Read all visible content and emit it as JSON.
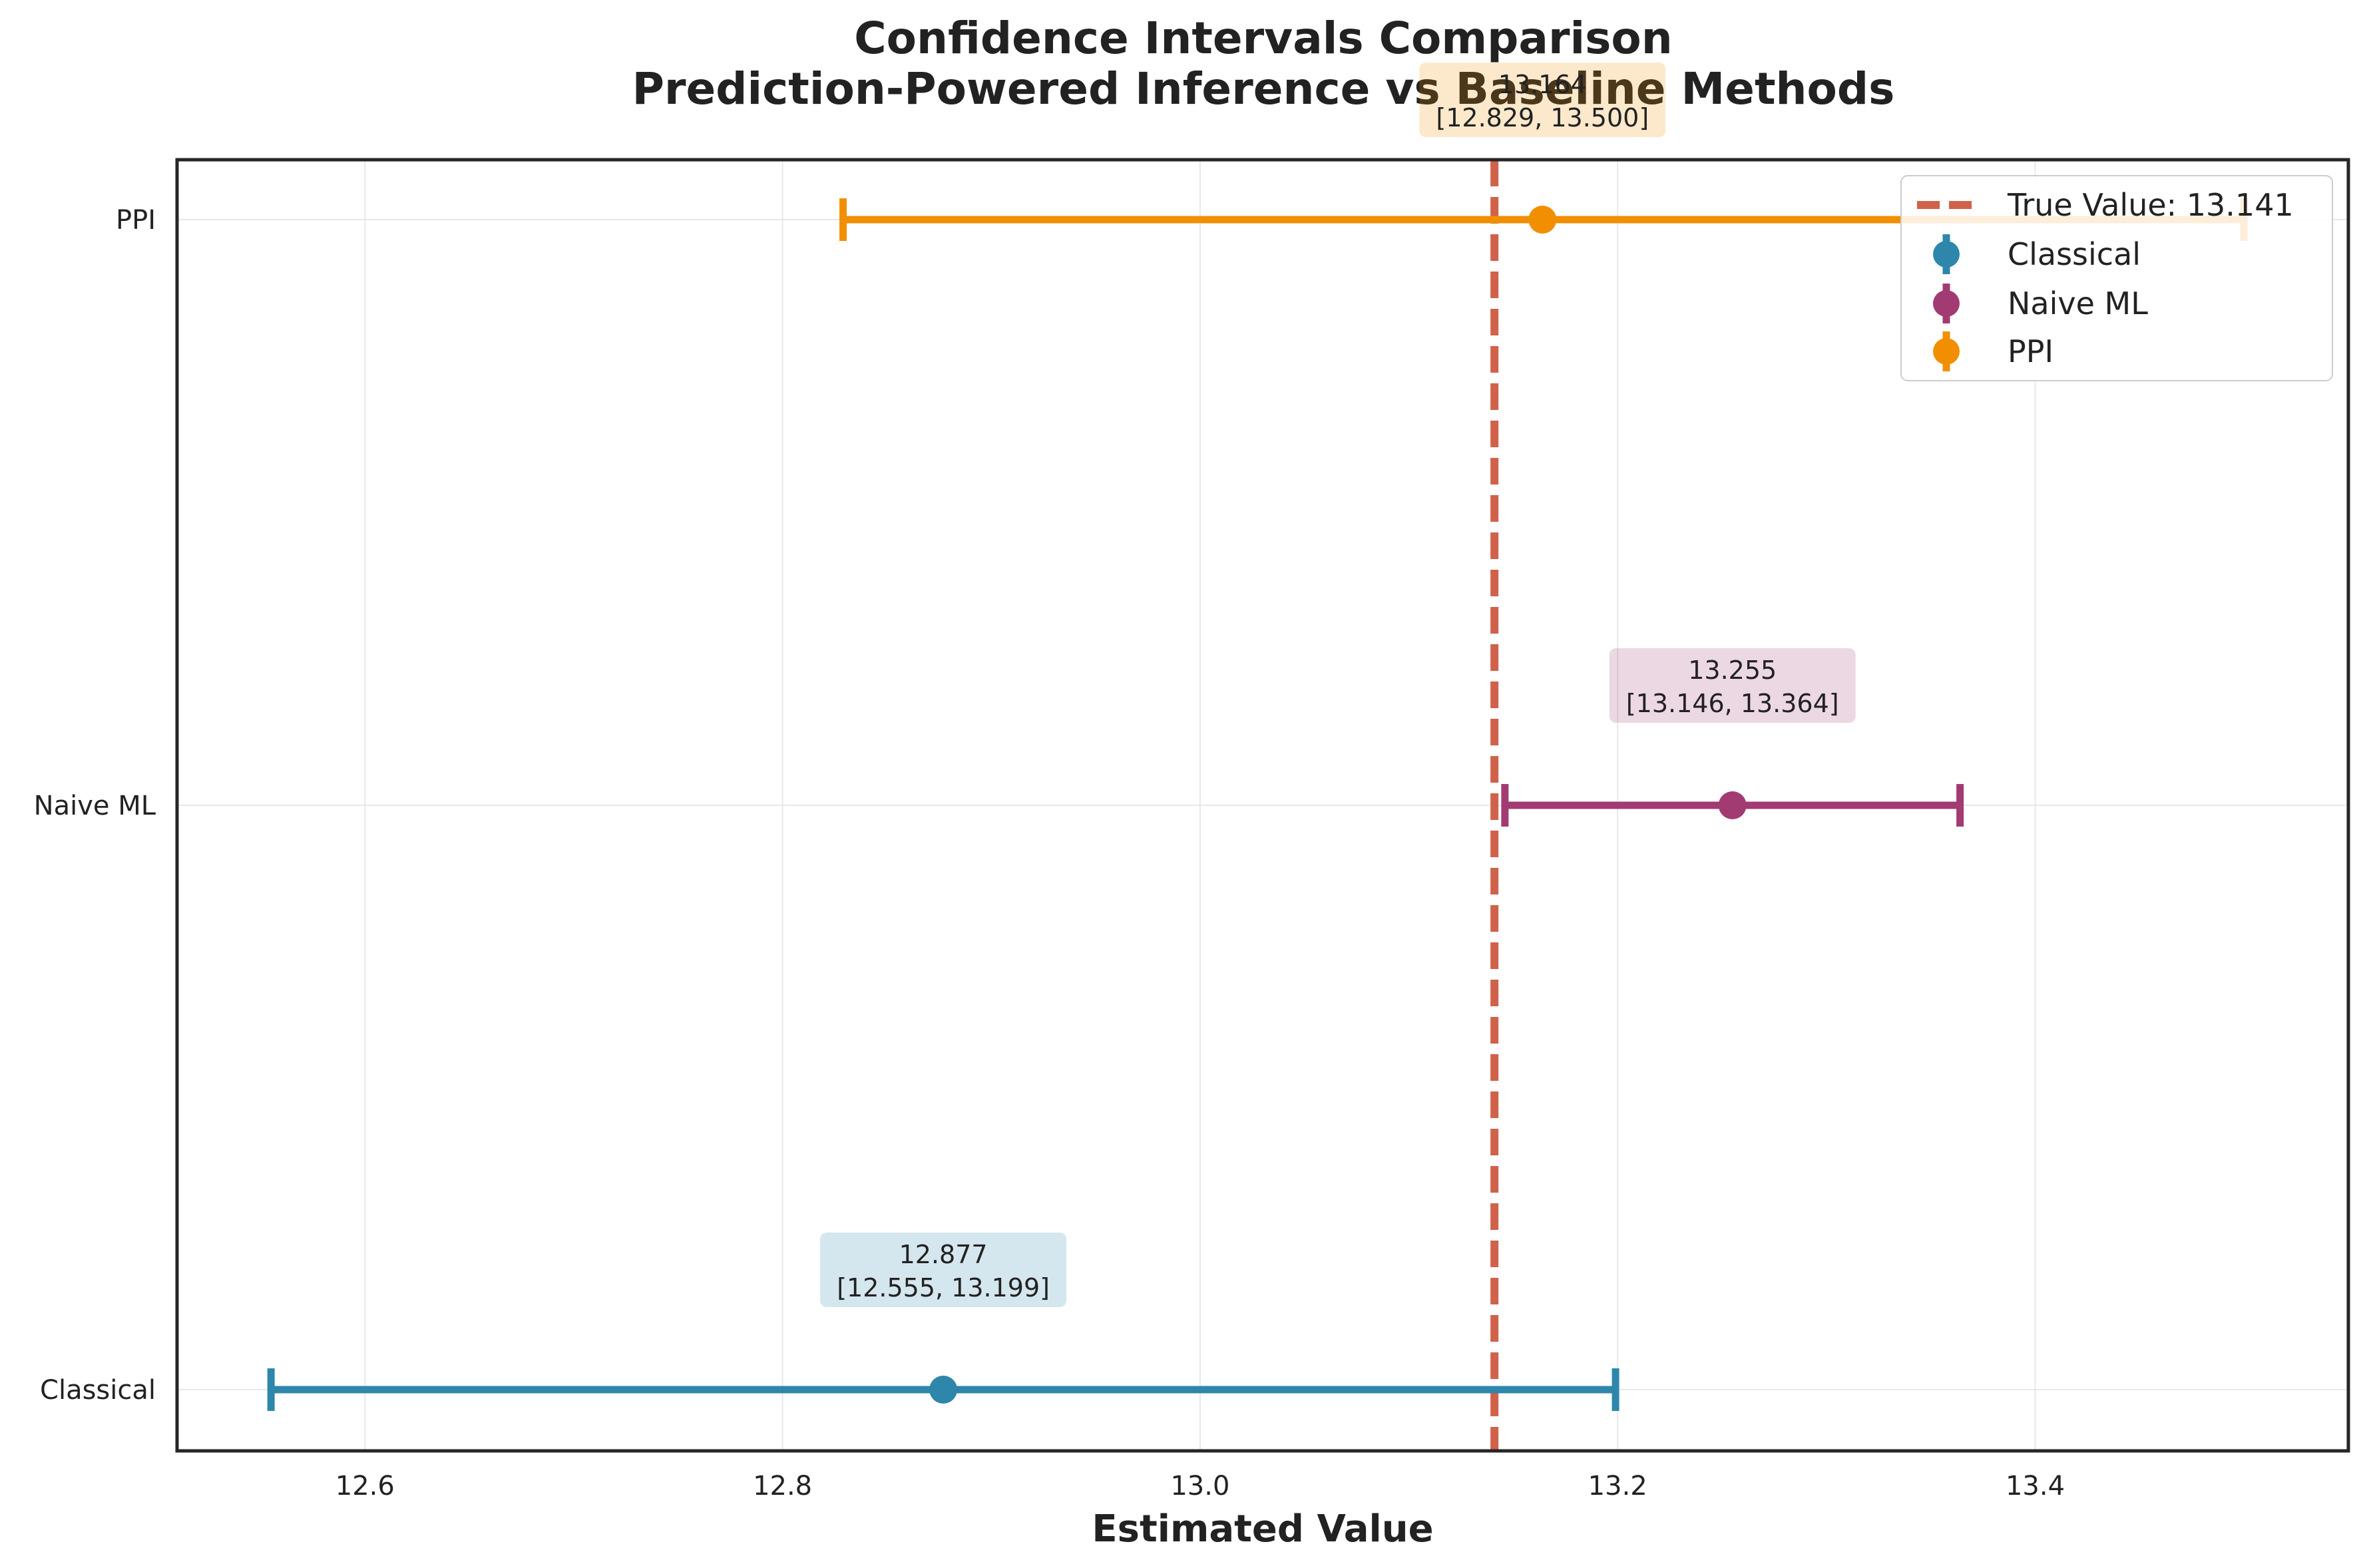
{
  "chart_data": {
    "type": "errorbar",
    "title": "Confidence Intervals Comparison",
    "subtitle": "Prediction-Powered Inference vs Baseline Methods",
    "xlabel": "Estimated Value",
    "ylabel": "",
    "xlim": [
      12.51,
      13.55
    ],
    "xticks": [
      "12.6",
      "12.8",
      "13.0",
      "13.2",
      "13.4"
    ],
    "xtick_values": [
      12.6,
      12.8,
      13.0,
      13.2,
      13.4
    ],
    "grid": true,
    "legend_position": "top-right",
    "reference_line": {
      "value": 13.141,
      "label": "True Value: 13.141",
      "color": "#d0614a",
      "style": "dashed"
    },
    "series": [
      {
        "name": "Classical",
        "estimate": 12.877,
        "lower": 12.555,
        "upper": 13.199,
        "color": "#2e86ab",
        "annotation_value": "12.877",
        "annotation_interval": "[12.555, 13.199]"
      },
      {
        "name": "Naive ML",
        "estimate": 13.255,
        "lower": 13.146,
        "upper": 13.364,
        "color": "#a23b72",
        "annotation_value": "13.255",
        "annotation_interval": "[13.146, 13.364]"
      },
      {
        "name": "PPI",
        "estimate": 13.164,
        "lower": 12.829,
        "upper": 13.5,
        "color": "#f18f01",
        "annotation_value": "13.164",
        "annotation_interval": "[12.829, 13.500]"
      }
    ]
  }
}
